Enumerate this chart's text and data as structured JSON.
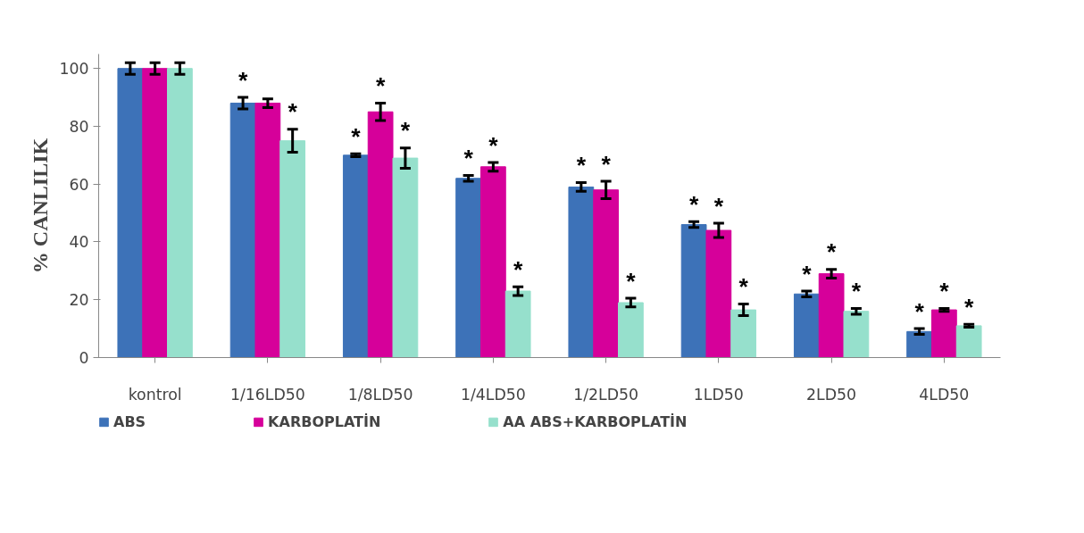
{
  "chart_data": {
    "type": "bar",
    "ylabel": "% CANLILIK",
    "categories": [
      "kontrol",
      "1/16LD50",
      "1/8LD50",
      "1/4LD50",
      "1/2LD50",
      "1LD50",
      "2LD50",
      "4LD50"
    ],
    "ylim": [
      0,
      105
    ],
    "yticks": [
      0,
      20,
      40,
      60,
      80,
      100
    ],
    "grid": false,
    "legend": "bottom",
    "series": [
      {
        "name": "ABS",
        "color": "#3d72b8",
        "values": [
          100,
          88,
          70,
          62,
          59,
          46,
          22,
          9
        ],
        "errors": [
          2,
          2,
          0.5,
          1,
          1.5,
          1,
          1,
          1
        ],
        "value_labels": [
          null,
          "*",
          "*",
          "*",
          "*",
          "*",
          "*",
          "*"
        ]
      },
      {
        "name": "KARBOPLATİN",
        "color": "#d6009a",
        "values": [
          100,
          88,
          85,
          66,
          58,
          44,
          29,
          16.5
        ],
        "errors": [
          2,
          1.5,
          3,
          1.5,
          3,
          2.5,
          1.5,
          0.5
        ],
        "value_labels": [
          null,
          null,
          "*",
          "*",
          "*",
          "*",
          "*",
          "*"
        ]
      },
      {
        "name": "AA ABS+KARBOPLATİN",
        "color": "#96e0cc",
        "values": [
          100,
          75,
          69,
          23,
          19,
          16.5,
          16,
          11
        ],
        "errors": [
          2,
          4,
          3.5,
          1.5,
          1.5,
          2,
          1,
          0.5
        ],
        "value_labels": [
          null,
          "*",
          "*",
          "*",
          "*",
          "*",
          "*",
          "*"
        ]
      }
    ]
  }
}
